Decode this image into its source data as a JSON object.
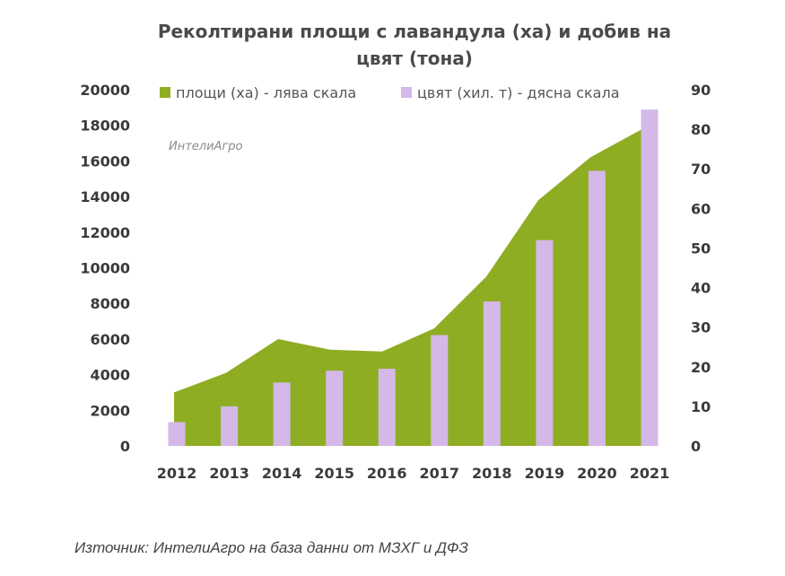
{
  "chart_data": {
    "type": "bar",
    "title_lines": [
      "Реколтирани площи с лавандула (ха) и добив на",
      "цвят (тона)"
    ],
    "categories": [
      "2012",
      "2013",
      "2014",
      "2015",
      "2016",
      "2017",
      "2018",
      "2019",
      "2020",
      "2021"
    ],
    "series": [
      {
        "name": "площи (ха) - лява скала",
        "type": "area",
        "axis": "left",
        "color": "#8fad22",
        "values": [
          3000,
          4100,
          6000,
          5400,
          5300,
          6600,
          9500,
          13800,
          16200,
          17800
        ]
      },
      {
        "name": "цвят (хил. т) - дясна скала",
        "type": "bar",
        "axis": "right",
        "color": "#d4b8e8",
        "values": [
          6,
          10,
          16,
          19,
          19.5,
          28,
          36.5,
          52,
          69.5,
          85
        ]
      }
    ],
    "y_left": {
      "min": 0,
      "max": 20000,
      "ticks": [
        "0",
        "2000",
        "4000",
        "6000",
        "8000",
        "10000",
        "12000",
        "14000",
        "16000",
        "18000",
        "20000"
      ]
    },
    "y_right": {
      "min": 0,
      "max": 90,
      "ticks": [
        "0",
        "10",
        "20",
        "30",
        "40",
        "50",
        "60",
        "70",
        "80",
        "90"
      ]
    },
    "grid": false,
    "legend_position": "top"
  },
  "watermark": "ИнтелиАгро",
  "source_note": "Източник: ИнтелиАгро на база данни от МЗХГ и ДФЗ"
}
